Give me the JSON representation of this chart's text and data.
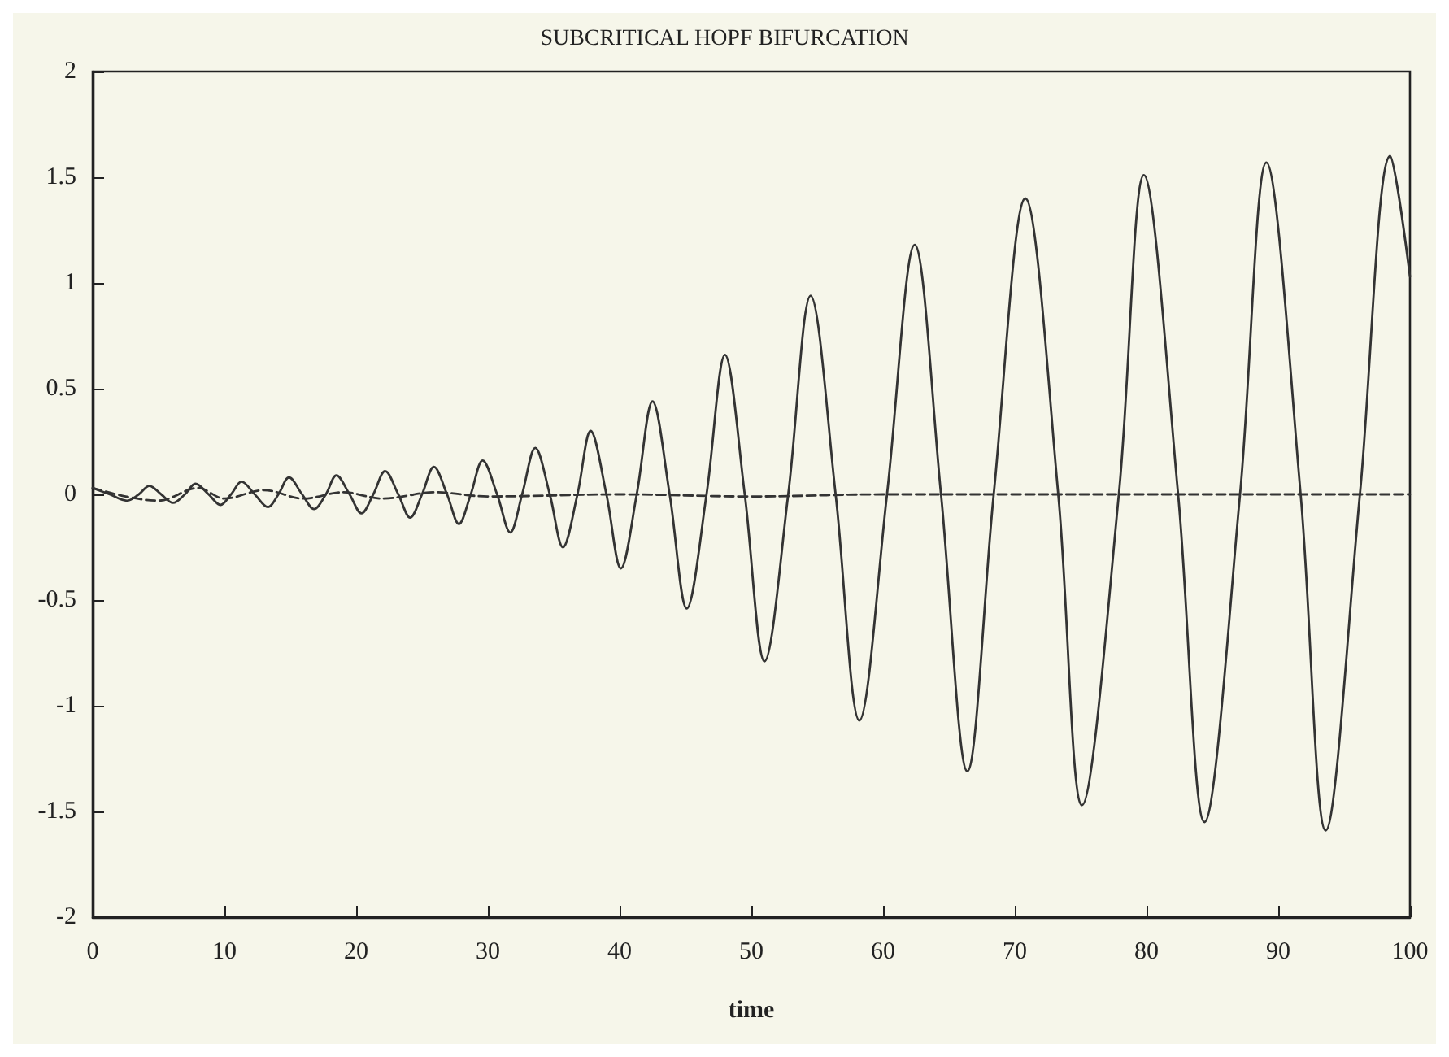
{
  "chart_data": {
    "type": "line",
    "title": "SUBCRITICAL HOPF BIFURCATION",
    "xlabel": "time",
    "xlim": [
      0,
      100
    ],
    "xticks": [
      0,
      10,
      20,
      30,
      40,
      50,
      60,
      70,
      80,
      90,
      100
    ],
    "ylim": [
      -2,
      2
    ],
    "yticks": [
      -2,
      -1.5,
      -1,
      -0.5,
      0,
      0.5,
      1,
      1.5,
      2
    ],
    "grid": false,
    "marker": "none",
    "series": [
      {
        "color": "#333333",
        "line_style": "solid",
        "x": [
          0,
          1.3,
          2.6,
          3.5,
          4.3,
          5.2,
          6.1,
          7,
          7.8,
          8.8,
          9.7,
          10.5,
          11.3,
          12.3,
          13.3,
          14.1,
          14.9,
          15.9,
          16.8,
          17.7,
          18.5,
          19.5,
          20.4,
          21.3,
          22.2,
          23.2,
          24.1,
          25,
          25.9,
          26.9,
          27.8,
          28.7,
          29.6,
          30.7,
          31.7,
          32.6,
          33.6,
          34.7,
          35.7,
          36.8,
          37.8,
          39,
          40.1,
          41.3,
          42.5,
          43.8,
          45.1,
          46.6,
          48,
          49.5,
          51,
          52.8,
          54.5,
          56.4,
          58.2,
          60.3,
          62.4,
          64.4,
          66.4,
          68.4,
          70.8,
          73.3,
          75.1,
          77.9,
          79.8,
          82.4,
          84.4,
          87.1,
          89.1,
          91.7,
          93.6,
          96.2,
          98.5,
          100
        ],
        "values": [
          0.03,
          0,
          -0.03,
          0,
          0.04,
          0,
          -0.04,
          0,
          0.05,
          0,
          -0.05,
          0,
          0.06,
          0,
          -0.06,
          0,
          0.08,
          0,
          -0.07,
          0,
          0.09,
          0,
          -0.09,
          0,
          0.11,
          0,
          -0.11,
          0,
          0.13,
          0,
          -0.14,
          0,
          0.16,
          0,
          -0.18,
          0,
          0.22,
          0,
          -0.25,
          0,
          0.3,
          0,
          -0.35,
          0,
          0.44,
          0,
          -0.54,
          0,
          0.66,
          0,
          -0.79,
          0,
          0.94,
          0,
          -1.07,
          0,
          1.18,
          0,
          -1.31,
          0,
          1.4,
          0,
          -1.47,
          0,
          1.51,
          0,
          -1.55,
          0,
          1.57,
          0,
          -1.59,
          0,
          1.6,
          1.03
        ]
      },
      {
        "color": "#333333",
        "line_style": "dashed",
        "x": [
          0,
          2.5,
          5,
          8,
          10,
          13,
          16,
          19,
          22,
          26,
          30,
          40,
          50,
          60,
          70,
          80,
          90,
          100
        ],
        "values": [
          0.03,
          -0.01,
          -0.03,
          0.03,
          -0.02,
          0.02,
          -0.02,
          0.01,
          -0.02,
          0.01,
          -0.01,
          0,
          -0.01,
          0,
          0,
          0,
          0,
          0
        ]
      }
    ]
  }
}
